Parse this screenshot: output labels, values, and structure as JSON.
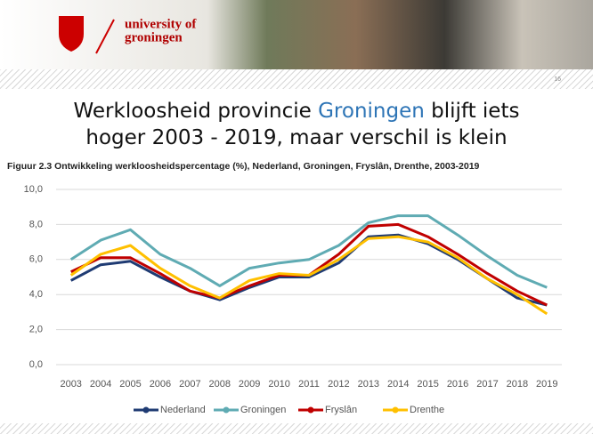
{
  "header": {
    "logo_line1": "university of",
    "logo_line2": "groningen",
    "slide_number": "16"
  },
  "slide_title": {
    "before": "Werkloosheid provincie",
    "highlight": "Groningen",
    "after": "blijft iets",
    "line2": "hoger 2003 - 2019, maar verschil is klein"
  },
  "chart_data": {
    "type": "line",
    "title": "Figuur 2.3 Ontwikkeling werkloosheidspercentage (%), Nederland, Groningen, Fryslân, Drenthe, 2003-2019",
    "categories": [
      "2003",
      "2004",
      "2005",
      "2006",
      "2007",
      "2008",
      "2009",
      "2010",
      "2011",
      "2012",
      "2013",
      "2014",
      "2015",
      "2016",
      "2017",
      "2018",
      "2019"
    ],
    "series": [
      {
        "name": "Nederland",
        "color": "#1f3b73",
        "values": [
          4.8,
          5.7,
          5.9,
          5.0,
          4.2,
          3.7,
          4.4,
          5.0,
          5.0,
          5.8,
          7.3,
          7.4,
          6.9,
          6.0,
          4.9,
          3.8,
          3.4
        ]
      },
      {
        "name": "Groningen",
        "color": "#5fabb3",
        "values": [
          6.0,
          7.1,
          7.7,
          6.3,
          5.5,
          4.5,
          5.5,
          5.8,
          6.0,
          6.8,
          8.1,
          8.5,
          8.5,
          7.4,
          6.2,
          5.1,
          4.4
        ]
      },
      {
        "name": "Fryslân",
        "color": "#c00000",
        "values": [
          5.3,
          6.1,
          6.1,
          5.2,
          4.2,
          3.8,
          4.5,
          5.1,
          5.1,
          6.3,
          7.9,
          8.0,
          7.3,
          6.3,
          5.2,
          4.2,
          3.4
        ]
      },
      {
        "name": "Drenthe",
        "color": "#ffc000",
        "values": [
          5.1,
          6.3,
          6.8,
          5.5,
          4.5,
          3.8,
          4.8,
          5.2,
          5.1,
          6.0,
          7.2,
          7.3,
          7.0,
          6.1,
          4.9,
          4.0,
          2.9
        ]
      }
    ],
    "ylim": [
      0,
      10
    ],
    "yticks": [
      {
        "value": 0,
        "label": "0,0"
      },
      {
        "value": 2,
        "label": "2,0"
      },
      {
        "value": 4,
        "label": "4,0"
      },
      {
        "value": 6,
        "label": "6,0"
      },
      {
        "value": 8,
        "label": "8,0"
      },
      {
        "value": 10,
        "label": "10,0"
      }
    ],
    "grid": true,
    "legend": "bottom"
  }
}
